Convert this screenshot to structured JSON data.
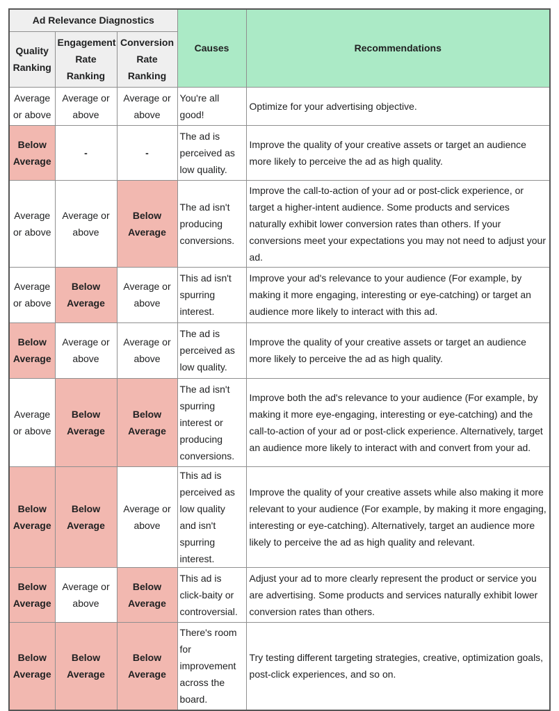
{
  "header": {
    "group_title": "Ad Relevance Diagnostics",
    "quality": "Quality Ranking",
    "engagement": "Engagement Rate Ranking",
    "conversion": "Conversion Rate Ranking",
    "causes": "Causes",
    "recommendations": "Recommendations"
  },
  "colors": {
    "header_bg": "#efefef",
    "green_header": "#abeac6",
    "below_average": "#f2b8b0"
  },
  "rows": [
    {
      "quality": "Average or above",
      "engagement": "Average or above",
      "conversion": "Average or above",
      "cause": "You're all good!",
      "recommendation": "Optimize for your advertising objective."
    },
    {
      "quality": "Below Average",
      "engagement": "-",
      "conversion": "-",
      "cause": "The ad is perceived as low quality.",
      "recommendation": "Improve the quality of your creative assets or target an audience more likely to perceive the ad as high quality."
    },
    {
      "quality": "Average or above",
      "engagement": "Average or above",
      "conversion": "Below Average",
      "cause": "The ad isn't producing conversions.",
      "recommendation": "Improve the call-to-action of your ad or post-click experience, or target a higher-intent audience. Some products and services naturally exhibit lower conversion rates than others. If your conversions meet your expectations you may not need to adjust your ad."
    },
    {
      "quality": "Average or above",
      "engagement": "Below Average",
      "conversion": "Average or above",
      "cause": "This ad isn't spurring interest.",
      "recommendation": "Improve your ad's relevance to your audience (For example, by making it more engaging, interesting or eye-catching) or target an audience more likely to interact with this ad."
    },
    {
      "quality": "Below Average",
      "engagement": "Average or above",
      "conversion": "Average or above",
      "cause": "The ad is perceived as low quality.",
      "recommendation": "Improve the quality of your creative assets or target an audience more likely to perceive the ad as high quality."
    },
    {
      "quality": "Average or above",
      "engagement": "Below Average",
      "conversion": "Below Average",
      "cause": "The ad isn't spurring interest or producing conversions.",
      "recommendation": "Improve both the ad's relevance to your audience (For example, by making it more eye-engaging, interesting or eye-catching) and the call-to-action of your ad or post-click experience. Alternatively, target an audience more likely to interact with and convert from your ad."
    },
    {
      "quality": "Below Average",
      "engagement": "Below Average",
      "conversion": "Average or above",
      "cause": "This ad is perceived as low quality and isn't spurring interest.",
      "recommendation": "Improve the quality of your creative assets while also making it more relevant to your audience (For example, by making it more engaging, interesting or eye-catching). Alternatively, target an audience more likely to perceive the ad as high quality and relevant."
    },
    {
      "quality": "Below Average",
      "engagement": "Average or above",
      "conversion": "Below Average",
      "cause": "This ad is click-baity or controversial.",
      "recommendation": "Adjust your ad to more clearly represent the product or service you are advertising. Some products and services naturally exhibit lower conversion rates than others."
    },
    {
      "quality": "Below Average",
      "engagement": "Below Average",
      "conversion": "Below Average",
      "cause": "There's room for improvement across the board.",
      "recommendation": "Try testing different targeting strategies, creative, optimization goals, post-click experiences, and so on."
    }
  ]
}
